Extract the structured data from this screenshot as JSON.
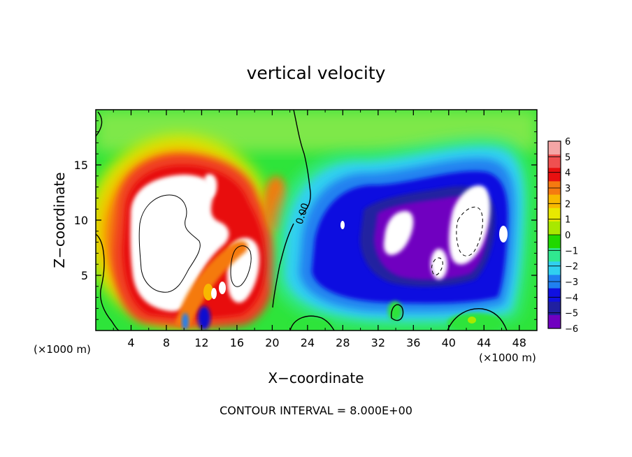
{
  "chart_data": {
    "type": "heatmap",
    "title": "vertical velocity",
    "xlabel": "X−coordinate",
    "ylabel": "Z−coordinate",
    "x_unit": "(×1000 m)",
    "z_unit": "(×1000 m)",
    "x_ticks": [
      4,
      8,
      12,
      16,
      20,
      24,
      28,
      32,
      36,
      40,
      44,
      48
    ],
    "x_tick_labels": [
      "4",
      "8",
      "12",
      "16",
      "20",
      "24",
      "28",
      "32",
      "36",
      "40",
      "44",
      "48"
    ],
    "y_ticks": [
      5,
      10,
      15
    ],
    "y_tick_labels": [
      "5",
      "10",
      "15"
    ],
    "xlim": [
      0,
      50
    ],
    "ylim": [
      0,
      20
    ],
    "grid": false,
    "colorbar": {
      "position": "right",
      "levels": [
        6,
        5,
        4,
        3,
        2,
        1,
        0,
        -1,
        -2,
        -3,
        -4,
        -5,
        -6
      ],
      "labels": [
        "6",
        "5",
        "4",
        "3",
        "2",
        "1",
        "0",
        "−1",
        "−2",
        "−3",
        "−4",
        "−5",
        "−6"
      ],
      "colors": [
        "#f4a6a6",
        "#ef5050",
        "#e81010",
        "#f57a10",
        "#f8b800",
        "#e8e800",
        "#a8e800",
        "#20d800",
        "#30e890",
        "#30d0f0",
        "#2080f0",
        "#1010e0",
        "#2020a0",
        "#7000c0"
      ]
    },
    "contour_label": "0.00",
    "footer": "CONTOUR INTERVAL = 8.000E+00",
    "features": [
      {
        "kind": "updraft",
        "x": 9.5,
        "z": 9.5,
        "peak": 14
      },
      {
        "kind": "updraft",
        "x": 16.8,
        "z": 6.8,
        "peak": 9
      },
      {
        "kind": "downdraft",
        "x": 33.5,
        "z": 9.0,
        "peak": -12
      },
      {
        "kind": "downdraft",
        "x": 42.5,
        "z": 9.5,
        "peak": -14
      },
      {
        "kind": "downdraft",
        "x": 11.5,
        "z": 1.2,
        "peak": -5
      }
    ]
  }
}
